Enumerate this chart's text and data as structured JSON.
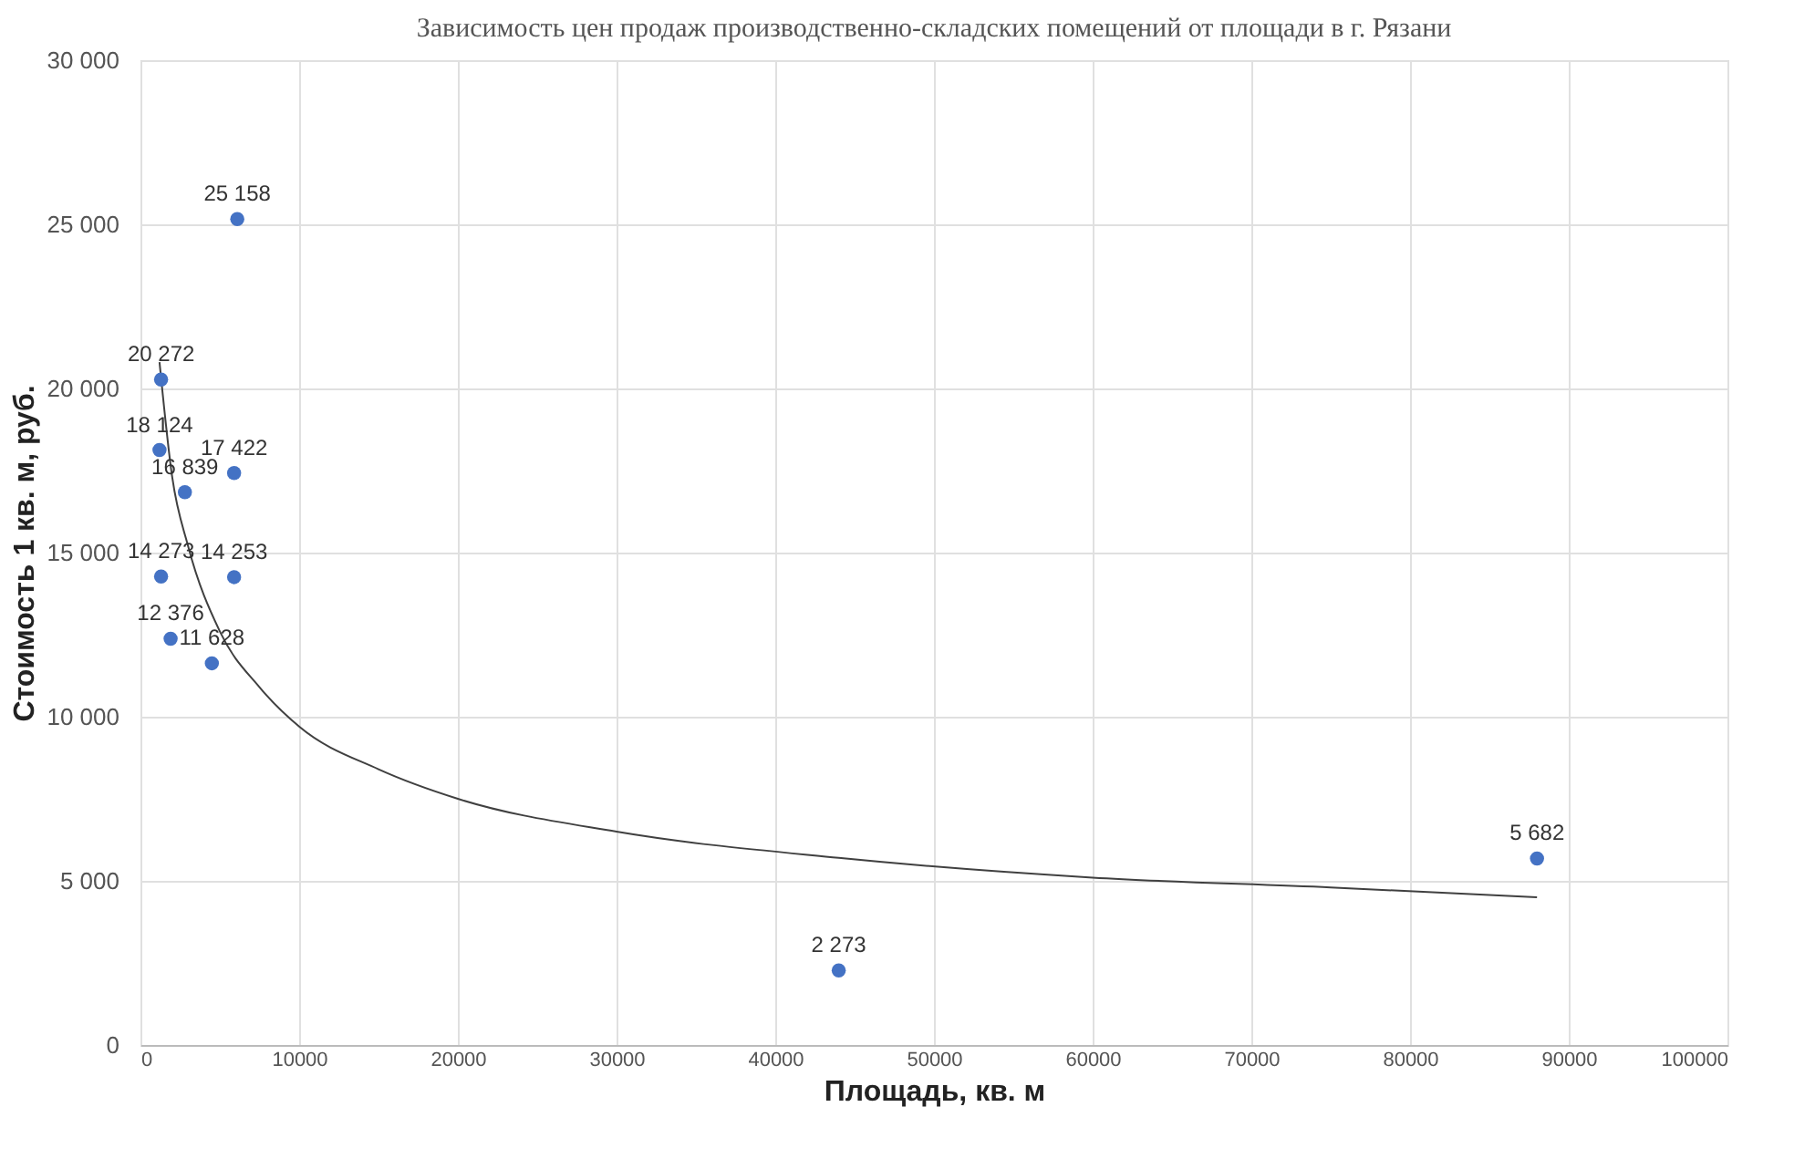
{
  "chart_data": {
    "type": "scatter",
    "title": "Зависимость цен продаж производственно-складских  помещений от площади в г. Рязани",
    "xlabel": "Площадь, кв. м",
    "ylabel": "Стоимость 1 кв. м, руб.",
    "x": [
      6100,
      1300,
      1200,
      2800,
      5900,
      1300,
      5900,
      1900,
      4500,
      44000,
      88000
    ],
    "series": [
      {
        "color": "#4472c4",
        "values": [
          25158,
          20272,
          18124,
          16839,
          17422,
          14273,
          14253,
          12376,
          11628,
          2273,
          5682
        ],
        "value_labels": [
          "25 158",
          "20 272",
          "18 124",
          "16 839",
          "17 422",
          "14 273",
          "14 253",
          "12 376",
          "11 628",
          "2 273",
          "5 682"
        ],
        "marker": "circle"
      },
      {
        "type": "line",
        "color": "#404040",
        "x": [
          1200,
          2000,
          3000,
          5000,
          7500,
          10000,
          15000,
          20000,
          30000,
          44000,
          60000,
          75000,
          88000
        ],
        "values": [
          20800,
          17300,
          15200,
          12600,
          10900,
          9700,
          8400,
          7500,
          6500,
          5700,
          5100,
          4800,
          4500
        ],
        "marker": "none"
      }
    ],
    "xlim": [
      0,
      100000
    ],
    "xticks": [
      0,
      10000,
      20000,
      30000,
      40000,
      50000,
      60000,
      70000,
      80000,
      90000,
      100000
    ],
    "ylim": [
      0,
      30000
    ],
    "yticks": [
      0,
      {
        "value": 5000,
        "label": "5 000"
      },
      {
        "value": 10000,
        "label": "10 000"
      },
      {
        "value": 15000,
        "label": "15 000"
      },
      {
        "value": 20000,
        "label": "20 000"
      },
      {
        "value": 25000,
        "label": "25 000"
      },
      {
        "value": 30000,
        "label": "30 000"
      }
    ],
    "grid": true
  }
}
